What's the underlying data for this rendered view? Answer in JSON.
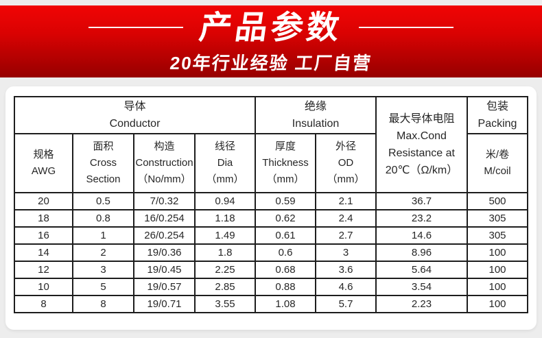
{
  "banner": {
    "title": "产品参数",
    "subtitle": "20年行业经验 工厂自营",
    "colors": {
      "red_top": "#f10505",
      "red_bottom": "#960000",
      "text": "#ffffff"
    }
  },
  "table": {
    "group_headers": [
      {
        "key": "conductor",
        "lines": [
          "导体",
          "Conductor"
        ],
        "colspan": 4,
        "rowspan": 1
      },
      {
        "key": "insulation",
        "lines": [
          "绝缘",
          "Insulation"
        ],
        "colspan": 2,
        "rowspan": 1
      },
      {
        "key": "resistance",
        "lines": [
          "最大导体电阻",
          "Max.Cond",
          "Resistance at",
          "20℃（Ω/km）"
        ],
        "colspan": 1,
        "rowspan": 2
      },
      {
        "key": "packing",
        "lines": [
          "包装",
          "Packing"
        ],
        "colspan": 1,
        "rowspan": 1
      }
    ],
    "sub_headers": [
      {
        "key": "awg",
        "lines": [
          "规格",
          "AWG"
        ]
      },
      {
        "key": "cross-section",
        "lines": [
          "面积",
          "Cross",
          "Section"
        ]
      },
      {
        "key": "construction",
        "lines": [
          "构造",
          "Construction",
          "（No/mm）"
        ]
      },
      {
        "key": "dia",
        "lines": [
          "线径",
          "Dia",
          "（mm）"
        ]
      },
      {
        "key": "thickness",
        "lines": [
          "厚度",
          "Thickness",
          "（mm）"
        ]
      },
      {
        "key": "od",
        "lines": [
          "外径",
          "OD",
          "（mm）"
        ]
      },
      {
        "key": "m-coil",
        "lines": [
          "米/卷",
          "M/coil"
        ]
      }
    ],
    "column_keys": [
      "awg",
      "cross-section",
      "construction",
      "dia",
      "thickness",
      "od",
      "resistance",
      "m-coil"
    ],
    "rows": [
      [
        "20",
        "0.5",
        "7/0.32",
        "0.94",
        "0.59",
        "2.1",
        "36.7",
        "500"
      ],
      [
        "18",
        "0.8",
        "16/0.254",
        "1.18",
        "0.62",
        "2.4",
        "23.2",
        "305"
      ],
      [
        "16",
        "1",
        "26/0.254",
        "1.49",
        "0.61",
        "2.7",
        "14.6",
        "305"
      ],
      [
        "14",
        "2",
        "19/0.36",
        "1.8",
        "0.6",
        "3",
        "8.96",
        "100"
      ],
      [
        "12",
        "3",
        "19/0.45",
        "2.25",
        "0.68",
        "3.6",
        "5.64",
        "100"
      ],
      [
        "10",
        "5",
        "19/0.57",
        "2.85",
        "0.88",
        "4.6",
        "3.54",
        "100"
      ],
      [
        "8",
        "8",
        "19/0.71",
        "3.55",
        "1.08",
        "5.7",
        "2.23",
        "100"
      ]
    ]
  }
}
